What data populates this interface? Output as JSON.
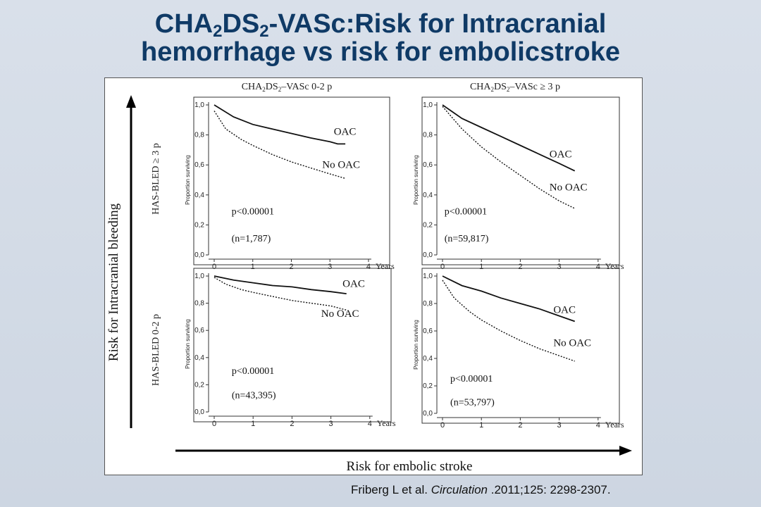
{
  "slide": {
    "title_line1_parts": [
      "CHA",
      "2",
      "DS",
      "2",
      "-VASc:Risk for  Intracranial"
    ],
    "title_line2": "hemorrhage vs risk for embolicstroke"
  },
  "figure": {
    "col_headers": [
      {
        "base": "CHA",
        "s1": "2",
        "mid": "DS",
        "s2": "2",
        "rest": "–VASc 0-2 p"
      },
      {
        "base": "CHA",
        "s1": "2",
        "mid": "DS",
        "s2": "2",
        "rest": "–VASc ≥ 3 p"
      }
    ],
    "row_labels": [
      "HAS-BLED ≥ 3 p",
      "HAS-BLED 0-2 p"
    ],
    "y_arrow_label": "Risk for Intracranial bleeding",
    "x_arrow_label": "Risk for embolic stroke"
  },
  "chart_data": [
    {
      "type": "line",
      "panel": "CHA2DS2-VASc 0-2 p / HAS-BLED ≥ 3 p",
      "ylabel": "Proportion surviving",
      "xlabel": "Years",
      "xlim": [
        0,
        4
      ],
      "ylim": [
        0,
        1.0
      ],
      "xticks": [
        "0",
        "1",
        "2",
        "3",
        "4"
      ],
      "yticks": [
        "0,0",
        "0,2",
        "0,4",
        "0,6",
        "0,8",
        "1,0"
      ],
      "series": [
        {
          "name": "OAC",
          "style": "solid",
          "x": [
            0,
            0.5,
            1,
            1.5,
            2,
            2.5,
            3,
            3.2,
            3.4
          ],
          "y": [
            1.0,
            0.92,
            0.87,
            0.84,
            0.81,
            0.78,
            0.755,
            0.74,
            0.74
          ]
        },
        {
          "name": "No OAC",
          "style": "dotted",
          "x": [
            0,
            0.3,
            0.7,
            1,
            1.5,
            2,
            2.5,
            3,
            3.4
          ],
          "y": [
            0.96,
            0.84,
            0.77,
            0.73,
            0.67,
            0.62,
            0.58,
            0.54,
            0.51
          ]
        }
      ],
      "annotations": [
        "p<0.00001",
        "(n=1,787)"
      ]
    },
    {
      "type": "line",
      "panel": "CHA2DS2-VASc ≥ 3 p / HAS-BLED ≥ 3 p",
      "ylabel": "Proportion surviving",
      "xlabel": "Years",
      "xlim": [
        0,
        4
      ],
      "ylim": [
        0,
        1.0
      ],
      "xticks": [
        "0",
        "1",
        "2",
        "3",
        "4"
      ],
      "yticks": [
        "0,0",
        "0,2",
        "0,4",
        "0,6",
        "0,8",
        "1,0"
      ],
      "series": [
        {
          "name": "OAC",
          "style": "solid",
          "x": [
            0,
            0.5,
            1,
            1.5,
            2,
            2.5,
            3,
            3.4
          ],
          "y": [
            1.0,
            0.91,
            0.85,
            0.79,
            0.73,
            0.67,
            0.61,
            0.56
          ]
        },
        {
          "name": "No OAC",
          "style": "dotted",
          "x": [
            0,
            0.5,
            1,
            1.5,
            2,
            2.5,
            3,
            3.4
          ],
          "y": [
            0.99,
            0.84,
            0.72,
            0.62,
            0.53,
            0.44,
            0.36,
            0.31
          ]
        }
      ],
      "annotations": [
        "p<0.00001",
        "(n=59,817)"
      ]
    },
    {
      "type": "line",
      "panel": "CHA2DS2-VASc 0-2 p / HAS-BLED 0-2 p",
      "ylabel": "Proportion surviving",
      "xlabel": "Years",
      "xlim": [
        0,
        4
      ],
      "ylim": [
        0,
        1.0
      ],
      "xticks": [
        "0",
        "1",
        "2",
        "3",
        "4"
      ],
      "yticks": [
        "0,0",
        "0,2",
        "0,4",
        "0,6",
        "0,8",
        "1,0"
      ],
      "series": [
        {
          "name": "OAC",
          "style": "solid",
          "x": [
            0,
            0.5,
            1,
            1.5,
            2,
            2.5,
            3,
            3.4
          ],
          "y": [
            1.0,
            0.97,
            0.95,
            0.93,
            0.92,
            0.9,
            0.885,
            0.87
          ]
        },
        {
          "name": "No OAC",
          "style": "dotted",
          "x": [
            0,
            0.3,
            0.7,
            1,
            1.5,
            2,
            2.5,
            3,
            3.4
          ],
          "y": [
            0.99,
            0.94,
            0.9,
            0.88,
            0.85,
            0.82,
            0.8,
            0.78,
            0.75
          ]
        }
      ],
      "annotations": [
        "p<0.00001",
        "(n=43,395)"
      ]
    },
    {
      "type": "line",
      "panel": "CHA2DS2-VASc ≥ 3 p / HAS-BLED 0-2 p",
      "ylabel": "Proportion surviving",
      "xlabel": "Years",
      "xlim": [
        0,
        4
      ],
      "ylim": [
        0,
        1.0
      ],
      "xticks": [
        "0",
        "1",
        "2",
        "3",
        "4"
      ],
      "yticks": [
        "0,0",
        "0,2",
        "0,4",
        "0,6",
        "0,8",
        "1,0"
      ],
      "series": [
        {
          "name": "OAC",
          "style": "solid",
          "x": [
            0,
            0.5,
            1,
            1.5,
            2,
            2.5,
            3,
            3.4
          ],
          "y": [
            1.0,
            0.93,
            0.89,
            0.84,
            0.8,
            0.76,
            0.71,
            0.67
          ]
        },
        {
          "name": "No OAC",
          "style": "dotted",
          "x": [
            0,
            0.3,
            0.7,
            1,
            1.5,
            2,
            2.5,
            3,
            3.4
          ],
          "y": [
            0.97,
            0.84,
            0.74,
            0.68,
            0.6,
            0.53,
            0.47,
            0.42,
            0.38
          ]
        }
      ],
      "annotations": [
        "p<0.00001",
        "(n=53,797)"
      ]
    }
  ],
  "citation": {
    "authors": "Friberg L et al. ",
    "journal": "Circulation",
    "details": " .2011;125: 2298-2307."
  }
}
